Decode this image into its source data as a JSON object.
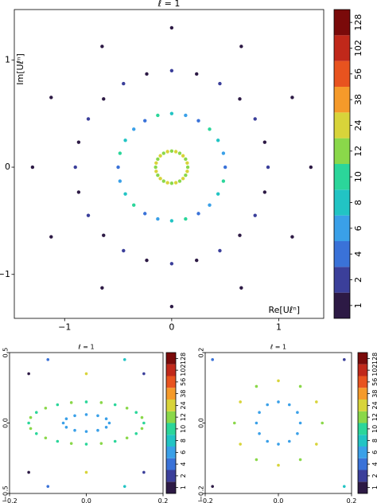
{
  "chart_data": [
    {
      "type": "scatter",
      "title": "ℓ = 1",
      "xlabel": "Re[Uℓⁿ]",
      "ylabel": "Im[Uℓⁿ]",
      "xlim": [
        -1.47,
        1.42
      ],
      "ylim": [
        -1.41,
        1.47
      ],
      "xticks": [
        {
          "value": -1,
          "label": "−1"
        },
        0,
        1
      ],
      "yticks": [
        {
          "value": -1,
          "label": "−1"
        },
        0,
        1
      ],
      "x": [
        0.15,
        0.145,
        0.13,
        0.106,
        0.075,
        0.039,
        0,
        -0.039,
        -0.075,
        -0.106,
        -0.13,
        -0.145,
        -0.15,
        -0.145,
        -0.13,
        -0.106,
        -0.075,
        -0.039,
        0,
        0.039,
        0.075,
        0.106,
        0.13,
        0.145,
        0.5,
        0.483,
        0.433,
        0.354,
        0.25,
        0.13,
        0,
        -0.13,
        -0.25,
        -0.354,
        -0.433,
        -0.483,
        -0.5,
        -0.483,
        -0.433,
        -0.354,
        -0.25,
        -0.13,
        0,
        0.13,
        0.25,
        0.354,
        0.433,
        0.483,
        0.9,
        0.869,
        0.779,
        0.636,
        0.45,
        0.233,
        0,
        -0.233,
        -0.45,
        -0.636,
        -0.779,
        -0.869,
        -0.9,
        -0.869,
        -0.779,
        -0.636,
        -0.45,
        -0.233,
        0,
        0.233,
        0.45,
        0.636,
        0.779,
        0.869,
        1.3,
        1.126,
        0.65,
        0,
        -0.65,
        -1.126,
        -1.3,
        -1.126,
        -0.65,
        0,
        0.65,
        1.126
      ],
      "values": [
        0,
        0.039,
        0.075,
        0.106,
        0.13,
        0.145,
        0.15,
        0.145,
        0.13,
        0.106,
        0.075,
        0.039,
        0,
        -0.039,
        -0.075,
        -0.106,
        -0.13,
        -0.145,
        -0.15,
        -0.145,
        -0.13,
        -0.106,
        -0.075,
        -0.039,
        0,
        0.13,
        0.25,
        0.354,
        0.433,
        0.483,
        0.5,
        0.483,
        0.433,
        0.354,
        0.25,
        0.13,
        0,
        -0.13,
        -0.25,
        -0.354,
        -0.433,
        -0.483,
        -0.5,
        -0.483,
        -0.433,
        -0.354,
        -0.25,
        -0.13,
        0,
        0.233,
        0.45,
        0.636,
        0.779,
        0.869,
        0.9,
        0.869,
        0.779,
        0.636,
        0.45,
        0.233,
        0,
        -0.233,
        -0.45,
        -0.636,
        -0.779,
        -0.869,
        -0.9,
        -0.869,
        -0.779,
        -0.636,
        -0.45,
        -0.233,
        0,
        0.65,
        1.126,
        1.3,
        1.126,
        0.65,
        0,
        -0.65,
        -1.126,
        -1.3,
        -1.126,
        -0.65
      ],
      "color_values": [
        12,
        24,
        12,
        24,
        12,
        24,
        12,
        24,
        12,
        24,
        12,
        24,
        12,
        24,
        12,
        24,
        12,
        24,
        12,
        24,
        12,
        24,
        12,
        24,
        4,
        6,
        8,
        10,
        4,
        6,
        8,
        10,
        4,
        6,
        8,
        10,
        4,
        6,
        8,
        10,
        4,
        6,
        8,
        10,
        4,
        6,
        8,
        10,
        2,
        1,
        2,
        1,
        2,
        1,
        2,
        1,
        2,
        1,
        2,
        1,
        2,
        1,
        2,
        1,
        2,
        1,
        2,
        1,
        2,
        1,
        2,
        1,
        1,
        1,
        1,
        1,
        1,
        1,
        1,
        1,
        1,
        1,
        1,
        1
      ],
      "colorbar": {
        "ticks": [
          1,
          2,
          4,
          6,
          8,
          10,
          12,
          24,
          38,
          56,
          102,
          128
        ],
        "colors": [
          "#2d1a45",
          "#3b3f9a",
          "#3a72d8",
          "#3aa0e8",
          "#22c4c4",
          "#2bd69a",
          "#8ad84a",
          "#d8d43a",
          "#f59a2a",
          "#e8531f",
          "#c0281a",
          "#7a0a0a"
        ]
      }
    },
    {
      "type": "scatter",
      "title": "ℓ = 1",
      "xlim": [
        -0.2,
        0.2
      ],
      "ylim": [
        -0.5,
        0.5
      ],
      "xticks": [
        {
          "value": -0.2,
          "label": "−0.2"
        },
        {
          "value": 0,
          "label": "0.0"
        },
        0.2
      ],
      "yticks": [
        {
          "value": -0.5,
          "label": "−0.5"
        },
        {
          "value": 0,
          "label": "0.0"
        },
        0.5
      ],
      "x": [
        0.06,
        0.052,
        0.03,
        0,
        -0.03,
        -0.052,
        -0.06,
        -0.052,
        -0.03,
        0,
        0.03,
        0.052,
        0.15,
        0.145,
        0.13,
        0.106,
        0.075,
        0.039,
        0,
        -0.039,
        -0.075,
        -0.106,
        -0.13,
        -0.145,
        -0.15,
        -0.145,
        -0.13,
        -0.106,
        -0.075,
        -0.039,
        0,
        0.039,
        0.075,
        0.106,
        0.13,
        0.145,
        -0.15,
        0,
        0.15,
        -0.15,
        0,
        0.15,
        -0.1,
        0.1,
        -0.1,
        0.1
      ],
      "values": [
        0,
        0.03,
        0.052,
        0.06,
        0.052,
        0.03,
        0,
        -0.03,
        -0.052,
        -0.06,
        -0.052,
        -0.03,
        0,
        0.039,
        0.075,
        0.106,
        0.13,
        0.145,
        0.15,
        0.145,
        0.13,
        0.106,
        0.075,
        0.039,
        0,
        -0.039,
        -0.075,
        -0.106,
        -0.13,
        -0.145,
        -0.15,
        -0.145,
        -0.13,
        -0.106,
        -0.075,
        -0.039,
        0.35,
        0.35,
        0.35,
        -0.35,
        -0.35,
        -0.35,
        0.45,
        0.45,
        -0.45,
        -0.45
      ],
      "color_values": [
        6,
        6,
        6,
        6,
        6,
        6,
        6,
        6,
        6,
        6,
        6,
        6,
        10,
        12,
        10,
        12,
        10,
        12,
        10,
        12,
        10,
        12,
        10,
        12,
        10,
        12,
        10,
        12,
        10,
        12,
        10,
        12,
        10,
        12,
        10,
        12,
        1,
        24,
        2,
        1,
        24,
        2,
        4,
        8,
        4,
        8
      ],
      "colorbar": {
        "ticks": [
          1,
          2,
          4,
          6,
          8,
          10,
          12,
          24,
          38,
          56,
          102,
          128
        ],
        "colors": [
          "#2d1a45",
          "#3b3f9a",
          "#3a72d8",
          "#3aa0e8",
          "#22c4c4",
          "#2bd69a",
          "#8ad84a",
          "#d8d43a",
          "#f59a2a",
          "#e8531f",
          "#c0281a",
          "#7a0a0a"
        ]
      }
    },
    {
      "type": "scatter",
      "title": "ℓ = 1",
      "xlim": [
        -0.2,
        0.2
      ],
      "ylim": [
        -0.2,
        0.2
      ],
      "xticks": [
        {
          "value": -0.2,
          "label": "−0.2"
        },
        {
          "value": 0,
          "label": "0.0"
        },
        0.2
      ],
      "yticks": [
        {
          "value": -0.2,
          "label": "−0.2"
        },
        {
          "value": 0,
          "label": "0.0"
        },
        0.2
      ],
      "x": [
        0.06,
        0.052,
        0.03,
        0,
        -0.03,
        -0.052,
        -0.06,
        -0.052,
        -0.03,
        0,
        0.03,
        0.052,
        0.12,
        0.104,
        0.06,
        0,
        -0.06,
        -0.104,
        -0.12,
        -0.104,
        -0.06,
        0,
        0.06,
        0.104,
        0.18,
        -0.18,
        0.18,
        -0.18
      ],
      "values": [
        0,
        0.03,
        0.052,
        0.06,
        0.052,
        0.03,
        0,
        -0.03,
        -0.052,
        -0.06,
        -0.052,
        -0.03,
        0,
        0.06,
        0.104,
        0.12,
        0.104,
        0.06,
        0,
        -0.06,
        -0.104,
        -0.12,
        -0.104,
        -0.06,
        0.18,
        0.18,
        -0.18,
        -0.18
      ],
      "color_values": [
        6,
        6,
        6,
        6,
        6,
        6,
        6,
        6,
        6,
        6,
        6,
        6,
        12,
        24,
        12,
        24,
        12,
        24,
        12,
        24,
        12,
        24,
        12,
        24,
        2,
        4,
        8,
        1
      ],
      "colorbar": {
        "ticks": [
          1,
          2,
          4,
          6,
          8,
          10,
          12,
          24,
          38,
          56,
          102,
          128
        ],
        "colors": [
          "#2d1a45",
          "#3b3f9a",
          "#3a72d8",
          "#3aa0e8",
          "#22c4c4",
          "#2bd69a",
          "#8ad84a",
          "#d8d43a",
          "#f59a2a",
          "#e8531f",
          "#c0281a",
          "#7a0a0a"
        ]
      }
    }
  ]
}
